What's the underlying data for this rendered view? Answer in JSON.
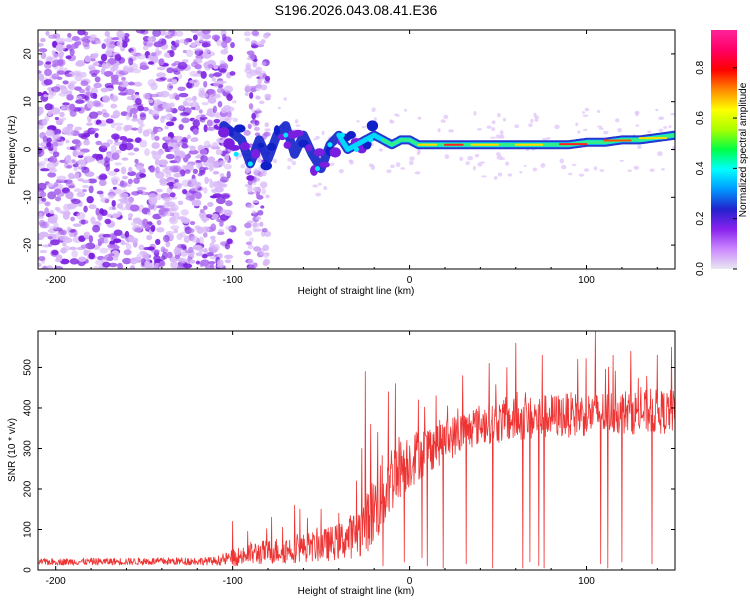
{
  "title": "S196.2026.043.08.41.E36",
  "colors": {
    "snr_line": "#ee3333",
    "scatter_faint": "#d8b8f8",
    "scatter_mid": "#b070f0",
    "scatter_dense": "#7a1fe0",
    "track_core": "#ff2020",
    "track_mid": "#33ee88",
    "track_outer": "#1020c8"
  },
  "chart_data": [
    {
      "type": "heatmap",
      "title": "S196.2026.043.08.41.E36",
      "xlabel": "Height of straight line (km)",
      "ylabel": "Frequency (Hz)",
      "xlim": [
        -210,
        150
      ],
      "ylim": [
        -25,
        25
      ],
      "x_ticks": [
        -200,
        -100,
        0,
        100
      ],
      "x_tick_labels": [
        "-200",
        "-100",
        "0",
        "100"
      ],
      "y_ticks": [
        -20,
        -10,
        0,
        10,
        20
      ],
      "y_tick_labels": [
        "-20",
        "-10",
        "0",
        "10",
        "20"
      ],
      "colorbar": {
        "label": "Normalized spectral amplitude",
        "range": [
          0,
          0.95
        ],
        "ticks": [
          0.0,
          0.2,
          0.4,
          0.6,
          0.8
        ],
        "tick_labels": [
          "0.0",
          "0.2",
          "0.4",
          "0.6",
          "0.8"
        ],
        "colormap": [
          "#e8e8f0",
          "#cc88ff",
          "#8822ee",
          "#2222cc",
          "#0099ff",
          "#00ffff",
          "#00ff44",
          "#aaff00",
          "#ffff00",
          "#ff8800",
          "#ff0000",
          "#ff0066",
          "#ff2299"
        ]
      },
      "noise_region": {
        "x_range": [
          -210,
          -100
        ],
        "y_range": [
          -25,
          25
        ]
      },
      "vertical_streak": {
        "x_range": [
          -92,
          -80
        ],
        "y_range": [
          -25,
          25
        ]
      },
      "track": {
        "x": [
          -105,
          -95,
          -90,
          -85,
          -80,
          -75,
          -70,
          -65,
          -60,
          -55,
          -50,
          -45,
          -40,
          -35,
          -30,
          -25,
          -20,
          -15,
          -10,
          -5,
          0,
          5,
          10,
          15,
          20,
          30,
          40,
          50,
          60,
          70,
          80,
          90,
          100,
          110,
          120,
          130,
          140,
          150
        ],
        "y": [
          5,
          2,
          -3,
          2,
          -2,
          3,
          5,
          -1,
          3,
          -1,
          -4,
          1,
          3,
          0,
          1,
          2,
          3,
          2,
          1,
          2,
          2,
          1,
          1,
          1,
          1,
          1,
          1,
          1,
          1,
          1,
          1,
          1,
          1.5,
          1.5,
          2,
          2,
          2.5,
          3
        ],
        "amplitude": [
          0.25,
          0.3,
          0.35,
          0.3,
          0.3,
          0.35,
          0.4,
          0.35,
          0.35,
          0.35,
          0.4,
          0.4,
          0.45,
          0.45,
          0.5,
          0.55,
          0.6,
          0.6,
          0.65,
          0.65,
          0.7,
          0.75,
          0.8,
          0.85,
          0.9,
          0.9,
          0.85,
          0.8,
          0.8,
          0.8,
          0.85,
          0.9,
          0.9,
          0.85,
          0.8,
          0.75,
          0.7,
          0.65
        ]
      }
    },
    {
      "type": "line",
      "xlabel": "Height of straight line (km)",
      "ylabel": "SNR (10 * v/v)",
      "xlim": [
        -210,
        150
      ],
      "ylim": [
        0,
        590
      ],
      "x_ticks": [
        -200,
        -100,
        0,
        100
      ],
      "x_tick_labels": [
        "-200",
        "-100",
        "0",
        "100"
      ],
      "y_ticks": [
        0,
        100,
        200,
        300,
        400,
        500
      ],
      "y_tick_labels": [
        "0",
        "100",
        "200",
        "300",
        "400",
        "500"
      ],
      "envelope": {
        "x": [
          -210,
          -110,
          -100,
          -90,
          -80,
          -70,
          -60,
          -50,
          -40,
          -30,
          -25,
          -20,
          -15,
          -10,
          -5,
          0,
          10,
          20,
          30,
          40,
          60,
          80,
          100,
          120,
          150
        ],
        "mean": [
          20,
          22,
          30,
          40,
          45,
          50,
          55,
          60,
          70,
          90,
          110,
          150,
          190,
          230,
          260,
          270,
          300,
          320,
          340,
          360,
          370,
          380,
          385,
          390,
          390
        ],
        "spread": [
          8,
          10,
          20,
          30,
          30,
          35,
          35,
          40,
          45,
          60,
          70,
          90,
          100,
          90,
          80,
          70,
          60,
          55,
          50,
          50,
          55,
          55,
          55,
          55,
          55
        ]
      },
      "spikes": [
        {
          "x": -100,
          "y": 120
        },
        {
          "x": -78,
          "y": 130
        },
        {
          "x": -65,
          "y": 160
        },
        {
          "x": -62,
          "y": 150
        },
        {
          "x": -50,
          "y": 150
        },
        {
          "x": -40,
          "y": 140
        },
        {
          "x": -30,
          "y": 220
        },
        {
          "x": -27,
          "y": 300
        },
        {
          "x": -25,
          "y": 490
        },
        {
          "x": -22,
          "y": 360
        },
        {
          "x": -18,
          "y": 340
        },
        {
          "x": -12,
          "y": 440
        },
        {
          "x": -8,
          "y": 460
        },
        {
          "x": 5,
          "y": 420
        },
        {
          "x": 15,
          "y": 430
        },
        {
          "x": 30,
          "y": 480
        },
        {
          "x": 45,
          "y": 510
        },
        {
          "x": 55,
          "y": 500
        },
        {
          "x": 60,
          "y": 560
        },
        {
          "x": 75,
          "y": 530
        },
        {
          "x": 95,
          "y": 520
        },
        {
          "x": 105,
          "y": 590
        },
        {
          "x": 115,
          "y": 530
        },
        {
          "x": 125,
          "y": 540
        },
        {
          "x": 140,
          "y": 530
        },
        {
          "x": 148,
          "y": 550
        }
      ],
      "dropouts": [
        {
          "x": -22,
          "y": 20
        },
        {
          "x": -15,
          "y": 10
        },
        {
          "x": -8,
          "y": 15
        },
        {
          "x": -3,
          "y": 20
        },
        {
          "x": 7,
          "y": 30
        },
        {
          "x": 10,
          "y": 10
        },
        {
          "x": 19,
          "y": 5
        },
        {
          "x": 32,
          "y": 15
        },
        {
          "x": 47,
          "y": 5
        },
        {
          "x": 55,
          "y": 20
        },
        {
          "x": 60,
          "y": 10
        },
        {
          "x": 64,
          "y": 5
        },
        {
          "x": 68,
          "y": 20
        },
        {
          "x": 73,
          "y": 10
        },
        {
          "x": 76,
          "y": 5
        },
        {
          "x": 108,
          "y": 15
        },
        {
          "x": 112,
          "y": 5
        },
        {
          "x": 115,
          "y": 10
        },
        {
          "x": 120,
          "y": 20
        },
        {
          "x": 137,
          "y": 15
        }
      ]
    }
  ]
}
